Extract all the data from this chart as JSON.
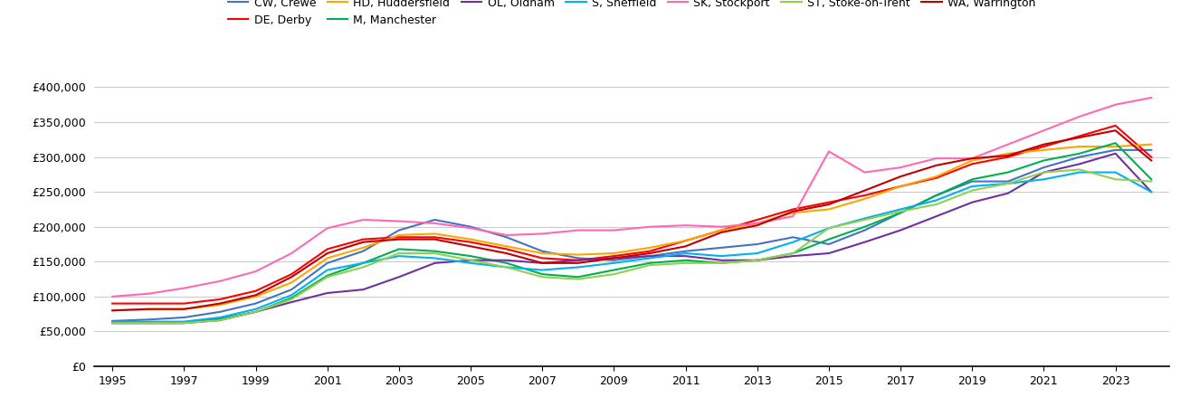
{
  "series": [
    {
      "label": "CW, Crewe",
      "color": "#4472C4",
      "values": [
        65000,
        67000,
        70000,
        78000,
        90000,
        110000,
        148000,
        165000,
        195000,
        210000,
        200000,
        185000,
        165000,
        155000,
        152000,
        158000,
        165000,
        170000,
        175000,
        185000,
        175000,
        195000,
        220000,
        245000,
        265000,
        265000,
        285000,
        300000,
        310000,
        310000
      ]
    },
    {
      "label": "DE, Derby",
      "color": "#FF0000",
      "values": [
        90000,
        90000,
        90000,
        96000,
        108000,
        132000,
        168000,
        182000,
        185000,
        185000,
        178000,
        168000,
        155000,
        152000,
        158000,
        165000,
        180000,
        195000,
        210000,
        225000,
        235000,
        245000,
        258000,
        270000,
        290000,
        300000,
        315000,
        330000,
        345000,
        300000
      ]
    },
    {
      "label": "HD, Huddersfield",
      "color": "#FFA500",
      "values": [
        80000,
        82000,
        82000,
        88000,
        100000,
        120000,
        155000,
        170000,
        188000,
        190000,
        182000,
        172000,
        162000,
        160000,
        162000,
        170000,
        180000,
        195000,
        205000,
        220000,
        225000,
        240000,
        258000,
        272000,
        295000,
        305000,
        310000,
        315000,
        315000,
        318000
      ]
    },
    {
      "label": "M, Manchester",
      "color": "#00B050",
      "values": [
        62000,
        62000,
        62000,
        68000,
        78000,
        98000,
        130000,
        148000,
        168000,
        165000,
        158000,
        148000,
        132000,
        128000,
        138000,
        148000,
        152000,
        148000,
        152000,
        162000,
        182000,
        200000,
        220000,
        245000,
        268000,
        278000,
        295000,
        305000,
        320000,
        268000
      ]
    },
    {
      "label": "OL, Oldham",
      "color": "#7030A0",
      "values": [
        62000,
        62000,
        62000,
        66000,
        78000,
        92000,
        105000,
        110000,
        128000,
        148000,
        152000,
        152000,
        148000,
        152000,
        155000,
        158000,
        158000,
        152000,
        152000,
        158000,
        162000,
        178000,
        195000,
        215000,
        235000,
        248000,
        278000,
        290000,
        305000,
        250000
      ]
    },
    {
      "label": "S, Sheffield",
      "color": "#00B0F0",
      "values": [
        64000,
        64000,
        64000,
        70000,
        82000,
        102000,
        138000,
        148000,
        158000,
        155000,
        148000,
        142000,
        138000,
        142000,
        148000,
        155000,
        162000,
        158000,
        162000,
        178000,
        198000,
        212000,
        225000,
        238000,
        258000,
        262000,
        268000,
        278000,
        278000,
        250000
      ]
    },
    {
      "label": "SK, Stockport",
      "color": "#FF69B4",
      "values": [
        100000,
        104000,
        112000,
        122000,
        136000,
        162000,
        198000,
        210000,
        208000,
        205000,
        198000,
        188000,
        190000,
        195000,
        195000,
        200000,
        202000,
        200000,
        205000,
        215000,
        308000,
        278000,
        285000,
        298000,
        298000,
        318000,
        338000,
        358000,
        375000,
        385000
      ]
    },
    {
      "label": "ST, Stoke-on-Trent",
      "color": "#92D050",
      "values": [
        62000,
        62000,
        62000,
        66000,
        78000,
        96000,
        128000,
        142000,
        162000,
        162000,
        152000,
        142000,
        128000,
        125000,
        132000,
        145000,
        148000,
        148000,
        152000,
        162000,
        198000,
        210000,
        222000,
        232000,
        252000,
        262000,
        278000,
        282000,
        268000,
        265000
      ]
    },
    {
      "label": "WA, Warrington",
      "color": "#C00000",
      "values": [
        80000,
        82000,
        82000,
        90000,
        102000,
        128000,
        162000,
        178000,
        182000,
        182000,
        172000,
        162000,
        148000,
        148000,
        155000,
        162000,
        172000,
        192000,
        202000,
        222000,
        232000,
        252000,
        272000,
        288000,
        298000,
        302000,
        318000,
        328000,
        338000,
        295000
      ]
    }
  ],
  "years": [
    1995,
    1996,
    1997,
    1998,
    1999,
    2000,
    2001,
    2002,
    2003,
    2004,
    2005,
    2006,
    2007,
    2008,
    2009,
    2010,
    2011,
    2012,
    2013,
    2014,
    2015,
    2016,
    2017,
    2018,
    2019,
    2020,
    2021,
    2022,
    2023,
    2024
  ],
  "ylim": [
    0,
    420000
  ],
  "yticks": [
    0,
    50000,
    100000,
    150000,
    200000,
    250000,
    300000,
    350000,
    400000
  ],
  "xticks": [
    1995,
    1997,
    1999,
    2001,
    2003,
    2005,
    2007,
    2009,
    2011,
    2013,
    2015,
    2017,
    2019,
    2021,
    2023
  ],
  "xlim_start": 1995,
  "xlim_end": 2024.5,
  "grid_color": "#cccccc",
  "legend_row1": [
    "CW, Crewe",
    "DE, Derby",
    "HD, Huddersfield",
    "M, Manchester",
    "OL, Oldham",
    "S, Sheffield",
    "SK, Stockport"
  ],
  "legend_row2": [
    "ST, Stoke-on-Trent",
    "WA, Warrington"
  ]
}
